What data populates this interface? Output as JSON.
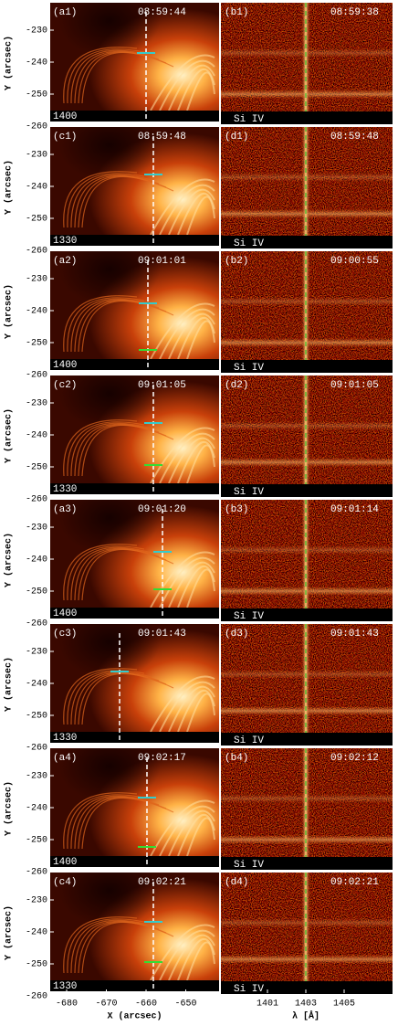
{
  "y_axis": {
    "label": "Y (arcsec)",
    "ticks": [
      -230,
      -240,
      -250,
      -260
    ]
  },
  "x_axis_left": {
    "label": "X (arcsec)",
    "ticks": [
      -680,
      -670,
      -660,
      -650
    ]
  },
  "x_axis_right": {
    "label": "λ [Å]",
    "ticks": [
      1401,
      1403,
      1405
    ]
  },
  "rows": [
    {
      "left": {
        "label": "(a1)",
        "time": "08:59:44",
        "band": "1400"
      },
      "right": {
        "label": "(b1)",
        "time": "08:59:38",
        "band": "Si IV"
      }
    },
    {
      "left": {
        "label": "(c1)",
        "time": "08:59:48",
        "band": "1330"
      },
      "right": {
        "label": "(d1)",
        "time": "08:59:48",
        "band": "Si IV"
      }
    },
    {
      "left": {
        "label": "(a2)",
        "time": "09:01:01",
        "band": "1400"
      },
      "right": {
        "label": "(b2)",
        "time": "09:00:55",
        "band": "Si IV"
      }
    },
    {
      "left": {
        "label": "(c2)",
        "time": "09:01:05",
        "band": "1330"
      },
      "right": {
        "label": "(d2)",
        "time": "09:01:05",
        "band": "Si IV"
      }
    },
    {
      "left": {
        "label": "(a3)",
        "time": "09:01:20",
        "band": "1400"
      },
      "right": {
        "label": "(b3)",
        "time": "09:01:14",
        "band": "Si IV"
      }
    },
    {
      "left": {
        "label": "(c3)",
        "time": "09:01:43",
        "band": "1330"
      },
      "right": {
        "label": "(d3)",
        "time": "09:01:43",
        "band": "Si IV"
      }
    },
    {
      "left": {
        "label": "(a4)",
        "time": "09:02:17",
        "band": "1400"
      },
      "right": {
        "label": "(b4)",
        "time": "09:02:12",
        "band": "Si IV"
      }
    },
    {
      "left": {
        "label": "(c4)",
        "time": "09:02:21",
        "band": "1330"
      },
      "right": {
        "label": "(d4)",
        "time": "09:02:21",
        "band": "Si IV"
      }
    }
  ]
}
